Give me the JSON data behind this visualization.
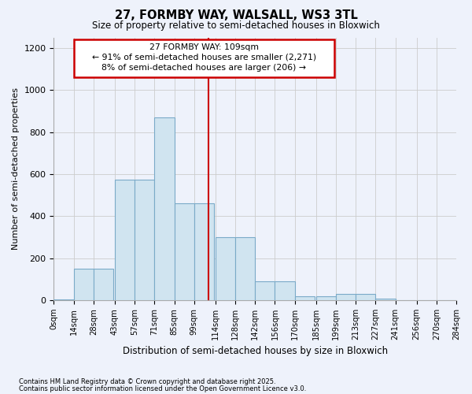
{
  "title1": "27, FORMBY WAY, WALSALL, WS3 3TL",
  "title2": "Size of property relative to semi-detached houses in Bloxwich",
  "xlabel": "Distribution of semi-detached houses by size in Bloxwich",
  "ylabel": "Number of semi-detached properties",
  "footnote1": "Contains HM Land Registry data © Crown copyright and database right 2025.",
  "footnote2": "Contains public sector information licensed under the Open Government Licence v3.0.",
  "annotation_line1": "27 FORMBY WAY: 109sqm",
  "annotation_line2": "← 91% of semi-detached houses are smaller (2,271)",
  "annotation_line3": "8% of semi-detached houses are larger (206) →",
  "bin_starts": [
    0,
    14,
    28,
    43,
    57,
    71,
    85,
    99,
    114,
    128,
    142,
    156,
    170,
    185,
    199,
    213,
    227,
    241,
    256,
    270
  ],
  "bin_labels": [
    "0sqm",
    "14sqm",
    "28sqm",
    "43sqm",
    "57sqm",
    "71sqm",
    "85sqm",
    "99sqm",
    "114sqm",
    "128sqm",
    "142sqm",
    "156sqm",
    "170sqm",
    "185sqm",
    "199sqm",
    "213sqm",
    "227sqm",
    "241sqm",
    "256sqm",
    "270sqm",
    "284sqm"
  ],
  "counts": [
    5,
    150,
    150,
    575,
    575,
    870,
    460,
    460,
    300,
    300,
    90,
    90,
    20,
    20,
    30,
    30,
    8,
    0,
    0,
    0
  ],
  "bar_color": "#d0e4f0",
  "bar_edge_color": "#7aaac8",
  "vline_color": "#cc0000",
  "vline_x": 109,
  "ylim": [
    0,
    1250
  ],
  "yticks": [
    0,
    200,
    400,
    600,
    800,
    1000,
    1200
  ],
  "grid_color": "#cccccc",
  "bg_color": "#eef2fb",
  "annotation_box_color": "#cc0000",
  "annotation_bg": "#ffffff"
}
